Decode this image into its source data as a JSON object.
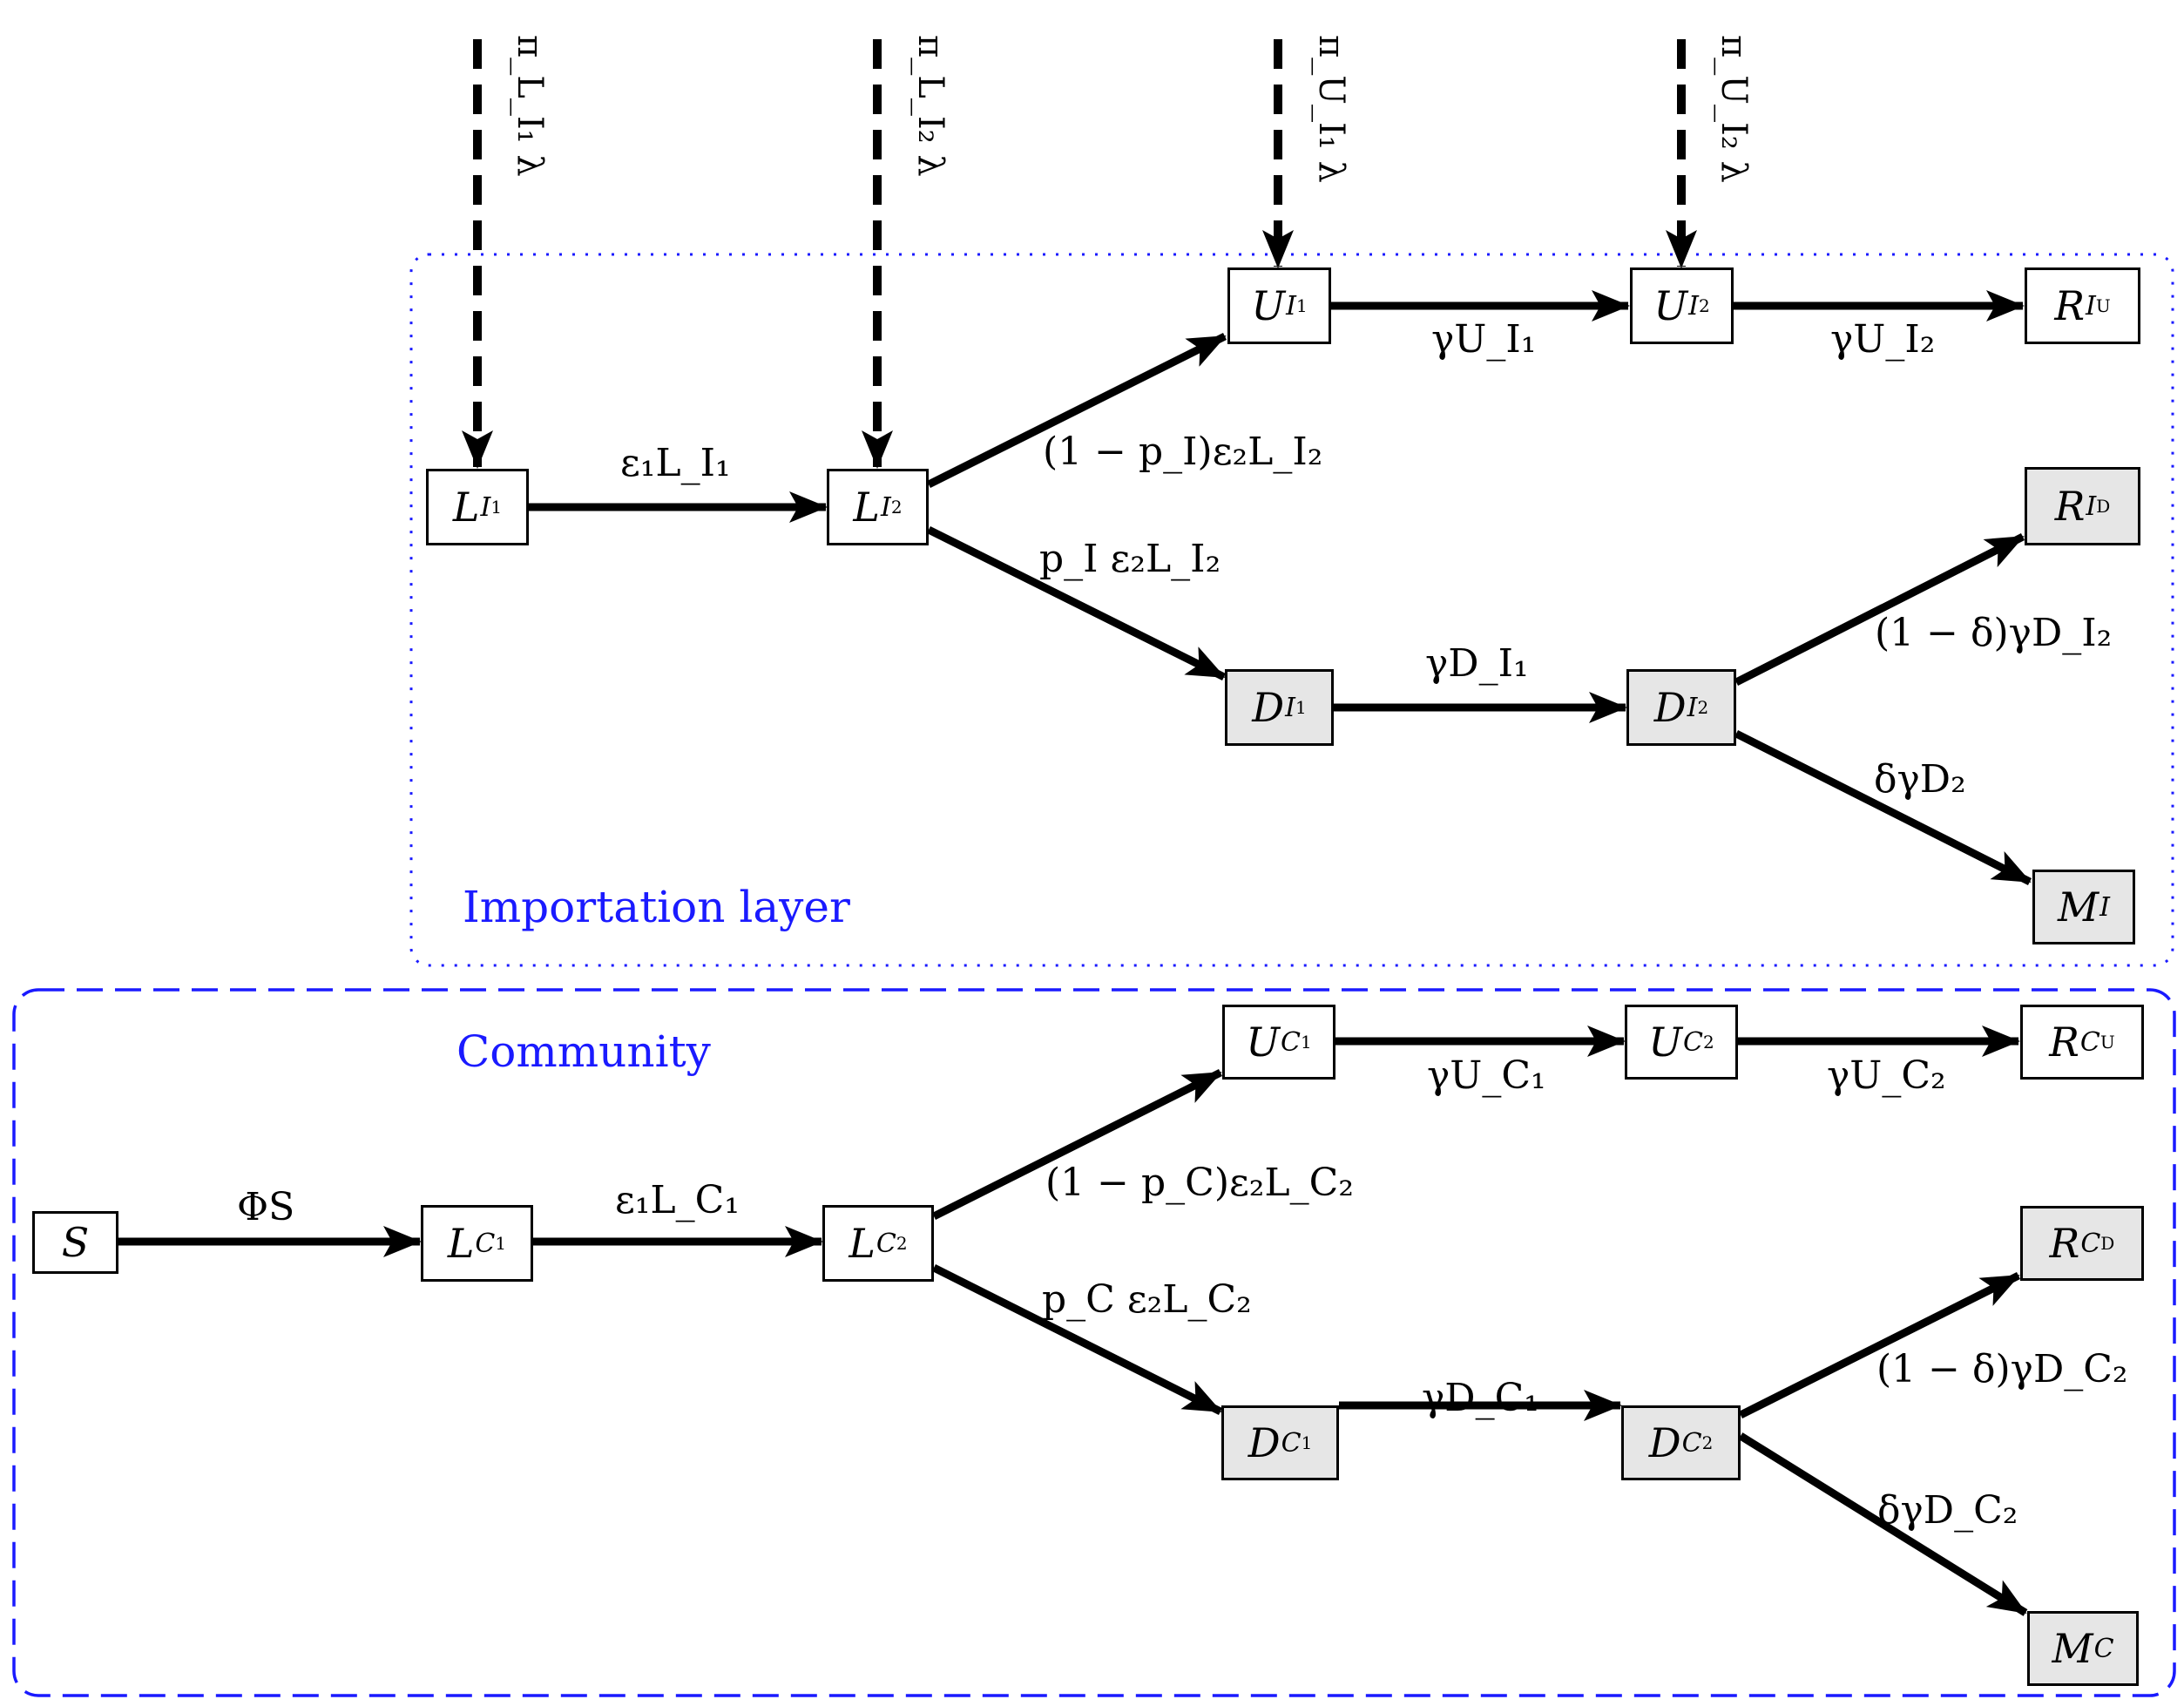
{
  "layers": {
    "importation": {
      "label": "Importation layer"
    },
    "community": {
      "label": "Community"
    }
  },
  "nodes": {
    "S": {
      "sym": "S"
    },
    "LI1": {
      "sym": "L",
      "sub": "I",
      "sub2": "1"
    },
    "LI2": {
      "sym": "L",
      "sub": "I",
      "sub2": "2"
    },
    "UI1": {
      "sym": "U",
      "sub": "I",
      "sub2": "1"
    },
    "UI2": {
      "sym": "U",
      "sub": "I",
      "sub2": "2"
    },
    "RIU": {
      "sym": "R",
      "sub": "I",
      "sub2": "U"
    },
    "RID": {
      "sym": "R",
      "sub": "I",
      "sub2": "D"
    },
    "DI1": {
      "sym": "D",
      "sub": "I",
      "sub2": "1"
    },
    "DI2": {
      "sym": "D",
      "sub": "I",
      "sub2": "2"
    },
    "MI": {
      "sym": "M",
      "sub": "I"
    },
    "LC1": {
      "sym": "L",
      "sub": "C",
      "sub2": "1"
    },
    "LC2": {
      "sym": "L",
      "sub": "C",
      "sub2": "2"
    },
    "UC1": {
      "sym": "U",
      "sub": "C",
      "sub2": "1"
    },
    "UC2": {
      "sym": "U",
      "sub": "C",
      "sub2": "2"
    },
    "RCU": {
      "sym": "R",
      "sub": "C",
      "sub2": "U"
    },
    "RCD": {
      "sym": "R",
      "sub": "C",
      "sub2": "D"
    },
    "DC1": {
      "sym": "D",
      "sub": "C",
      "sub2": "1"
    },
    "DC2": {
      "sym": "D",
      "sub": "C",
      "sub2": "2"
    },
    "MC": {
      "sym": "M",
      "sub": "C"
    }
  },
  "edges": {
    "LI1_LI2": "ε₁L_I₁",
    "LI2_UI1": "(1 − p_I)ε₂L_I₂",
    "LI2_DI1": "p_I ε₂L_I₂",
    "UI1_UI2": "γU_I₁",
    "UI2_RIU": "γU_I₂",
    "DI1_DI2": "γD_I₁",
    "DI2_RID": "(1 − δ)γD_I₂",
    "DI2_MI": "δγD₂",
    "S_LC1": "ΦS",
    "LC1_LC2": "ε₁L_C₁",
    "LC2_UC1": "(1 − p_C)ε₂L_C₂",
    "LC2_DC1": "p_C ε₂L_C₂",
    "UC1_UC2": "γU_C₁",
    "UC2_RCU": "γU_C₂",
    "DC1_DC2": "γD_C₁",
    "DC2_RCD": "(1 − δ)γD_C₂",
    "DC2_MC": "δγD_C₂"
  },
  "imports": {
    "to_LI1": "π_L_I₁ λ",
    "to_LI2": "π_L_I₂ λ",
    "to_UI1": "π_U_I₁ λ",
    "to_UI2": "π_U_I₂ λ"
  },
  "colors": {
    "layer_border": "#1a1aff",
    "detected_fill": "#e6e6e6",
    "arrow": "#000000"
  }
}
